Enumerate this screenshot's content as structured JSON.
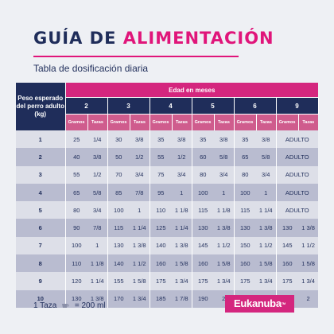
{
  "header": {
    "title_part1": "GUÍA DE",
    "title_part2": "ALIMENTACIÓN",
    "subtitle": "Tabla de dosificación diaria"
  },
  "table": {
    "weight_header": "Peso esperado del perro adulto (kg)",
    "age_header": "Edad en meses",
    "months": [
      "2",
      "3",
      "4",
      "5",
      "6",
      "9"
    ],
    "unit_grams": "Gramos",
    "unit_cups": "Tazas",
    "rows": [
      {
        "w": "1",
        "c": [
          "25",
          "1/4",
          "30",
          "3/8",
          "35",
          "3/8",
          "35",
          "3/8",
          "35",
          "3/8"
        ],
        "adult": "ADULTO"
      },
      {
        "w": "2",
        "c": [
          "40",
          "3/8",
          "50",
          "1/2",
          "55",
          "1/2",
          "60",
          "5/8",
          "65",
          "5/8"
        ],
        "adult": "ADULTO"
      },
      {
        "w": "3",
        "c": [
          "55",
          "1/2",
          "70",
          "3/4",
          "75",
          "3/4",
          "80",
          "3/4",
          "80",
          "3/4"
        ],
        "adult": "ADULTO"
      },
      {
        "w": "4",
        "c": [
          "65",
          "5/8",
          "85",
          "7/8",
          "95",
          "1",
          "100",
          "1",
          "100",
          "1"
        ],
        "adult": "ADULTO"
      },
      {
        "w": "5",
        "c": [
          "80",
          "3/4",
          "100",
          "1",
          "110",
          "1 1/8",
          "115",
          "1 1/8",
          "115",
          "1 1/4"
        ],
        "adult": "ADULTO"
      },
      {
        "w": "6",
        "c": [
          "90",
          "7/8",
          "115",
          "1 1/4",
          "125",
          "1 1/4",
          "130",
          "1 3/8",
          "130",
          "1 3/8",
          "130",
          "1 3/8"
        ]
      },
      {
        "w": "7",
        "c": [
          "100",
          "1",
          "130",
          "1 3/8",
          "140",
          "1 3/8",
          "145",
          "1 1/2",
          "150",
          "1 1/2",
          "145",
          "1 1/2"
        ]
      },
      {
        "w": "8",
        "c": [
          "110",
          "1 1/8",
          "140",
          "1 1/2",
          "160",
          "1 5/8",
          "160",
          "1 5/8",
          "160",
          "1 5/8",
          "160",
          "1 5/8"
        ]
      },
      {
        "w": "9",
        "c": [
          "120",
          "1 1/4",
          "155",
          "1 5/8",
          "175",
          "1 3/4",
          "175",
          "1 3/4",
          "175",
          "1 3/4",
          "175",
          "1 3/4"
        ]
      },
      {
        "w": "10",
        "c": [
          "130",
          "1 3/8",
          "170",
          "1 3/4",
          "185",
          "1 7/8",
          "190",
          "2",
          "190",
          "2",
          "190",
          "2"
        ]
      }
    ]
  },
  "footer": {
    "cup_left": "1 Taza",
    "cup_right": "= 200 ml",
    "logo": "Eukanuba",
    "logo_tm": "TM"
  }
}
